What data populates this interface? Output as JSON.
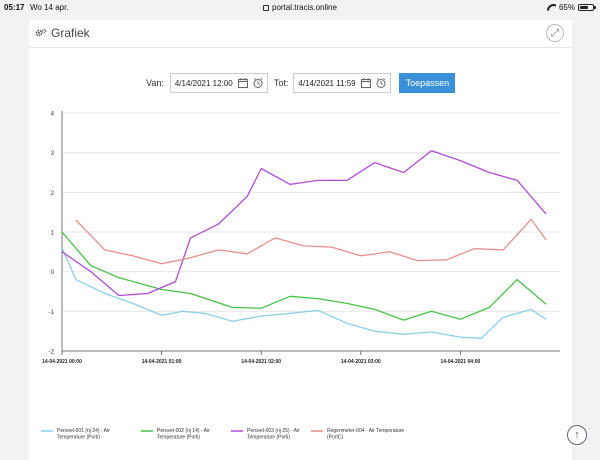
{
  "status": {
    "time": "05:17",
    "date": "Wo 14 apr.",
    "url": "portal.tracis.online",
    "battery": "65%",
    "battery_level": 0.65
  },
  "header": {
    "title": "Grafiek",
    "icon": "gears-icon",
    "expand_icon": "expand-icon"
  },
  "filter": {
    "from_label": "Van:",
    "from_value": "4/14/2021 12:00",
    "to_label": "Tot:",
    "to_value": "4/14/2021 11:59",
    "apply_label": "Toepassen"
  },
  "colors": {
    "accent": "#3a90d8"
  },
  "chart_data": {
    "type": "line",
    "ylim": [
      -2,
      4
    ],
    "xlim": [
      0,
      5
    ],
    "yticks": [
      "-2",
      "-1",
      "0",
      "1",
      "2",
      "3",
      "4"
    ],
    "xticks": [
      {
        "x": 0,
        "label": "14-04-2021 00:00"
      },
      {
        "x": 1,
        "label": "14-04-2021 01:00"
      },
      {
        "x": 2,
        "label": "14-04-2021 02:00"
      },
      {
        "x": 3,
        "label": "14-04-2021 03:00"
      },
      {
        "x": 4,
        "label": "14-04-2021 04:00"
      }
    ],
    "series": [
      {
        "name": "Perceel-001 (rij 24) - Air Temperature (Porti)",
        "color": "#8ecfe6",
        "x": [
          0.0,
          0.14,
          0.43,
          0.71,
          1.0,
          1.21,
          1.43,
          1.71,
          2.0,
          2.29,
          2.57,
          2.86,
          3.14,
          3.43,
          3.71,
          4.0,
          4.21,
          4.43,
          4.71,
          4.86
        ],
        "y": [
          0.6,
          -0.2,
          -0.55,
          -0.8,
          -1.1,
          -1.0,
          -1.05,
          -1.25,
          -1.12,
          -1.05,
          -0.98,
          -1.3,
          -1.5,
          -1.58,
          -1.52,
          -1.65,
          -1.68,
          -1.15,
          -0.95,
          -1.2
        ]
      },
      {
        "name": "Perceel-002 (rij 14) - Air Temperature (Porti)",
        "color": "#46c346",
        "x": [
          0.0,
          0.29,
          0.57,
          1.0,
          1.29,
          1.71,
          2.0,
          2.29,
          2.57,
          2.86,
          3.14,
          3.43,
          3.71,
          4.0,
          4.29,
          4.57,
          4.86
        ],
        "y": [
          1.0,
          0.15,
          -0.15,
          -0.45,
          -0.55,
          -0.9,
          -0.92,
          -0.62,
          -0.68,
          -0.8,
          -0.95,
          -1.22,
          -1.0,
          -1.2,
          -0.9,
          -0.2,
          -0.82
        ]
      },
      {
        "name": "Perceel-003 (rij 25) - Air Temperature (Porti)",
        "color": "#b04dd6",
        "x": [
          0.0,
          0.29,
          0.57,
          0.86,
          1.14,
          1.29,
          1.57,
          1.86,
          2.0,
          2.29,
          2.57,
          2.86,
          3.14,
          3.43,
          3.71,
          4.0,
          4.29,
          4.57,
          4.86
        ],
        "y": [
          0.5,
          0.0,
          -0.6,
          -0.55,
          -0.25,
          0.85,
          1.2,
          1.9,
          2.6,
          2.2,
          2.3,
          2.3,
          2.75,
          2.5,
          3.05,
          2.8,
          2.5,
          2.3,
          1.45
        ]
      },
      {
        "name": "Regenmeter-004 - Air Temperature (PortC)",
        "color": "#e88e8e",
        "x": [
          0.14,
          0.43,
          0.71,
          1.0,
          1.29,
          1.57,
          1.86,
          2.14,
          2.43,
          2.71,
          3.0,
          3.29,
          3.57,
          3.86,
          4.14,
          4.43,
          4.71,
          4.86
        ],
        "y": [
          1.3,
          0.55,
          0.4,
          0.2,
          0.35,
          0.55,
          0.45,
          0.85,
          0.65,
          0.62,
          0.4,
          0.5,
          0.28,
          0.3,
          0.58,
          0.55,
          1.32,
          0.8
        ]
      }
    ]
  }
}
